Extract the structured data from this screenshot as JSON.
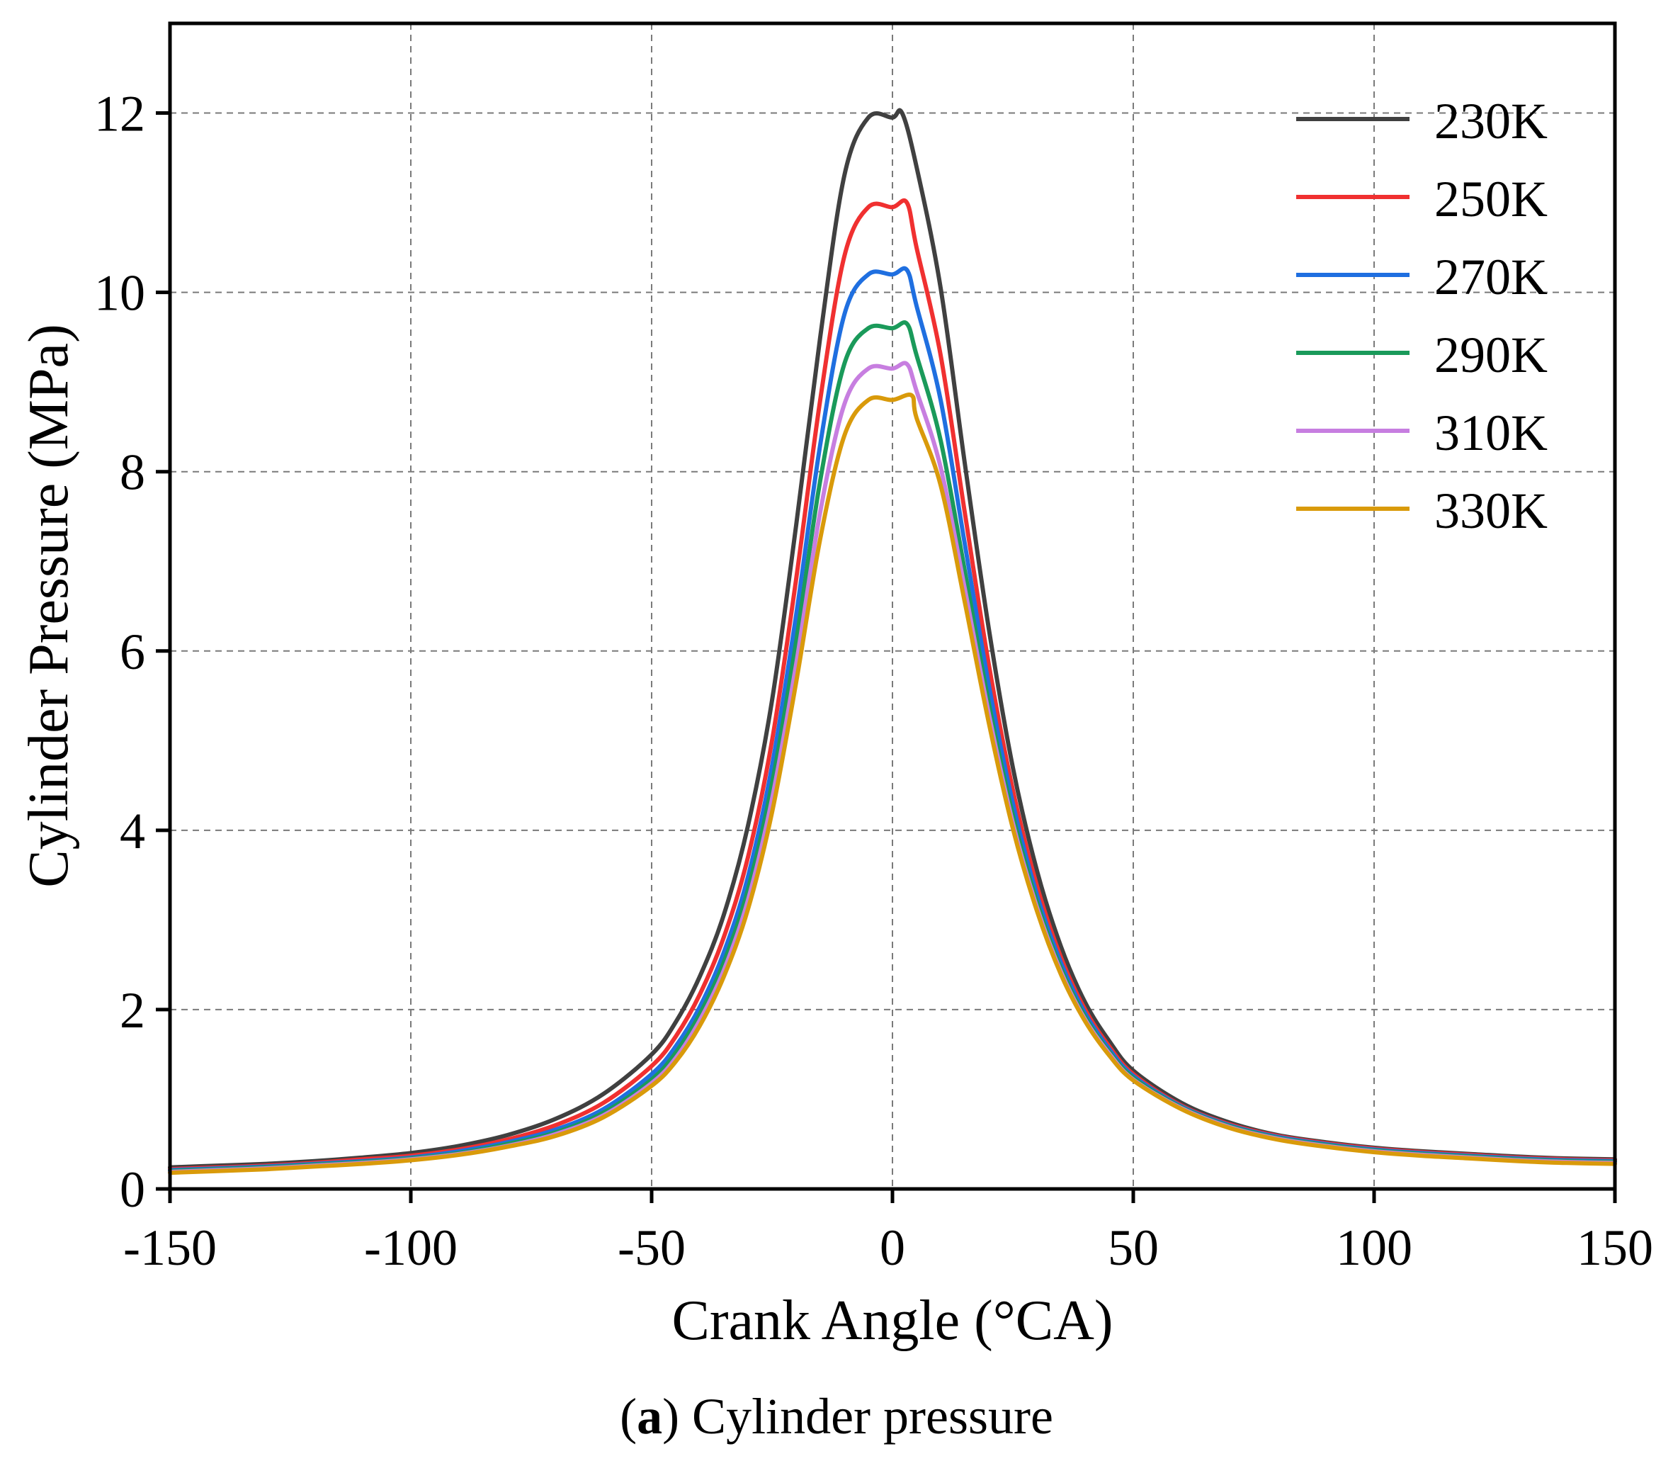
{
  "caption": {
    "label": "a",
    "text": "Cylinder pressure"
  },
  "chart_data": {
    "type": "line",
    "title": "",
    "xlabel": "Crank Angle (°CA)",
    "ylabel": "Cylinder Pressure (MPa)",
    "xlim": [
      -150,
      150
    ],
    "ylim": [
      0,
      13
    ],
    "xticks": [
      -150,
      -100,
      -50,
      0,
      50,
      100,
      150
    ],
    "yticks": [
      0,
      2,
      4,
      6,
      8,
      10,
      12
    ],
    "grid": true,
    "legend_position": "top-right",
    "x": [
      -150,
      -140,
      -130,
      -120,
      -110,
      -100,
      -90,
      -80,
      -70,
      -60,
      -50,
      -45,
      -40,
      -35,
      -30,
      -25,
      -20,
      -15,
      -10,
      -5,
      0,
      5,
      10,
      15,
      20,
      25,
      30,
      35,
      40,
      45,
      50,
      60,
      70,
      80,
      90,
      100,
      110,
      120,
      130,
      140,
      150
    ],
    "series": [
      {
        "name": "230K",
        "color": "#404040",
        "peak": 12.0,
        "peak_x": 2,
        "values": [
          0.24,
          0.26,
          0.28,
          0.31,
          0.35,
          0.4,
          0.48,
          0.6,
          0.78,
          1.06,
          1.5,
          1.86,
          2.37,
          3.06,
          4.05,
          5.45,
          7.4,
          9.5,
          11.3,
          11.95,
          11.95,
          11.4,
          10.05,
          8.1,
          6.25,
          4.7,
          3.55,
          2.7,
          2.08,
          1.65,
          1.32,
          0.96,
          0.74,
          0.6,
          0.52,
          0.46,
          0.42,
          0.39,
          0.36,
          0.34,
          0.33
        ]
      },
      {
        "name": "250K",
        "color": "#f03030",
        "peak": 11.0,
        "peak_x": 3,
        "values": [
          0.22,
          0.24,
          0.26,
          0.29,
          0.33,
          0.37,
          0.44,
          0.55,
          0.71,
          0.96,
          1.37,
          1.7,
          2.17,
          2.81,
          3.7,
          5.0,
          6.8,
          8.8,
          10.4,
          10.95,
          10.95,
          10.5,
          9.3,
          7.55,
          5.85,
          4.45,
          3.38,
          2.58,
          2.0,
          1.59,
          1.28,
          0.93,
          0.72,
          0.59,
          0.51,
          0.45,
          0.41,
          0.38,
          0.35,
          0.33,
          0.32
        ]
      },
      {
        "name": "270K",
        "color": "#1f6fe0",
        "peak": 10.25,
        "peak_x": 3,
        "values": [
          0.21,
          0.23,
          0.25,
          0.28,
          0.31,
          0.35,
          0.42,
          0.52,
          0.66,
          0.89,
          1.28,
          1.59,
          2.03,
          2.64,
          3.48,
          4.72,
          6.4,
          8.3,
          9.75,
          10.2,
          10.2,
          9.85,
          8.8,
          7.2,
          5.62,
          4.3,
          3.28,
          2.52,
          1.96,
          1.56,
          1.26,
          0.92,
          0.71,
          0.58,
          0.5,
          0.44,
          0.4,
          0.37,
          0.34,
          0.32,
          0.31
        ]
      },
      {
        "name": "290K",
        "color": "#1a9a5a",
        "peak": 9.65,
        "peak_x": 3,
        "values": [
          0.2,
          0.22,
          0.24,
          0.27,
          0.3,
          0.34,
          0.4,
          0.5,
          0.63,
          0.85,
          1.22,
          1.52,
          1.95,
          2.53,
          3.34,
          4.52,
          6.1,
          7.9,
          9.2,
          9.6,
          9.6,
          9.3,
          8.35,
          6.9,
          5.42,
          4.17,
          3.2,
          2.46,
          1.92,
          1.53,
          1.24,
          0.91,
          0.7,
          0.57,
          0.49,
          0.43,
          0.39,
          0.36,
          0.33,
          0.31,
          0.3
        ]
      },
      {
        "name": "310K",
        "color": "#c77ee0",
        "peak": 9.2,
        "peak_x": 3,
        "values": [
          0.19,
          0.21,
          0.23,
          0.26,
          0.29,
          0.33,
          0.39,
          0.48,
          0.61,
          0.82,
          1.18,
          1.46,
          1.88,
          2.44,
          3.22,
          4.35,
          5.85,
          7.55,
          8.75,
          9.15,
          9.15,
          8.9,
          8.05,
          6.7,
          5.3,
          4.08,
          3.14,
          2.42,
          1.89,
          1.51,
          1.22,
          0.9,
          0.69,
          0.56,
          0.48,
          0.42,
          0.38,
          0.35,
          0.32,
          0.3,
          0.29
        ]
      },
      {
        "name": "330K",
        "color": "#d99a0a",
        "peak": 8.85,
        "peak_x": 4,
        "values": [
          0.18,
          0.2,
          0.22,
          0.25,
          0.28,
          0.32,
          0.38,
          0.47,
          0.59,
          0.8,
          1.15,
          1.42,
          1.82,
          2.37,
          3.12,
          4.2,
          5.65,
          7.25,
          8.4,
          8.8,
          8.8,
          8.6,
          7.85,
          6.55,
          5.2,
          4.02,
          3.1,
          2.39,
          1.87,
          1.49,
          1.21,
          0.89,
          0.68,
          0.55,
          0.47,
          0.41,
          0.37,
          0.34,
          0.31,
          0.29,
          0.28
        ]
      }
    ]
  }
}
